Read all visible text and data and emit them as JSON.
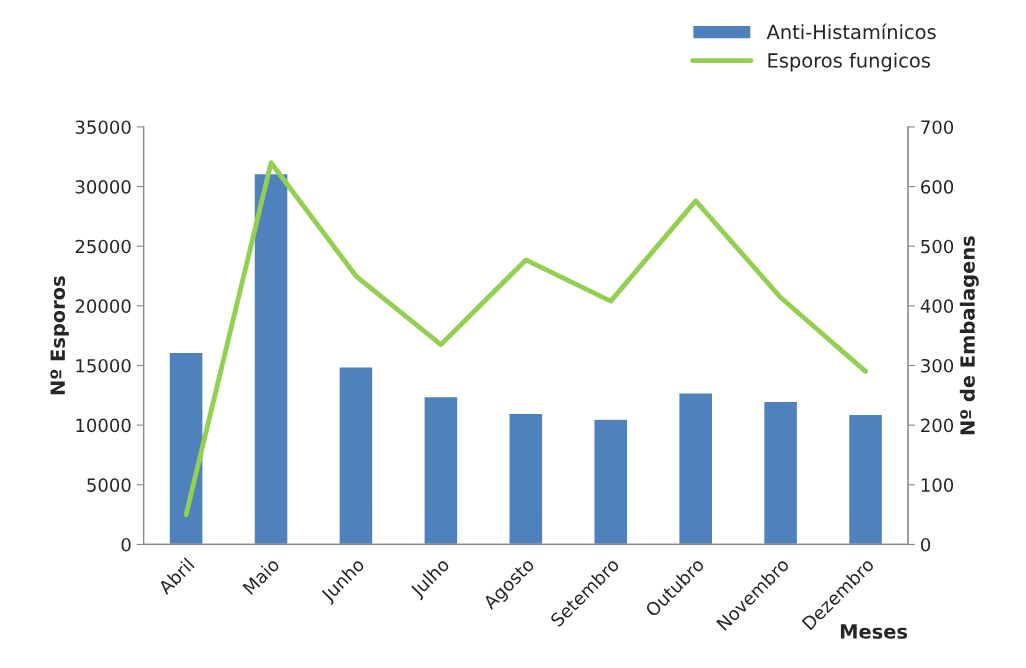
{
  "chart_data": {
    "type": "bar",
    "xlabel": "Meses",
    "ylabel": "Nº Esporos",
    "y2label": "Nº de Embalagens",
    "categories": [
      "Abril",
      "Maio",
      "Junho",
      "Julho",
      "Agosto",
      "Setembro",
      "Outubro",
      "Novembro",
      "Dezembro"
    ],
    "series": [
      {
        "name": "Anti-Histamínicos",
        "color": "#4f81bd",
        "values": [
          16100,
          31100,
          14900,
          12400,
          11000,
          10500,
          12700,
          12000,
          10900
        ]
      },
      {
        "name": "Esporos fungicos",
        "type": "line",
        "axis": "y2",
        "color": "#92d050",
        "values": [
          50,
          640,
          450,
          335,
          477,
          408,
          576,
          414,
          290
        ]
      }
    ],
    "ylim": [
      0,
      35000
    ],
    "yticks": [
      0,
      5000,
      10000,
      15000,
      20000,
      25000,
      30000,
      35000
    ],
    "y2lim": [
      0,
      700
    ],
    "y2ticks": [
      0,
      100,
      200,
      300,
      400,
      500,
      600,
      700
    ],
    "grid": false,
    "legend": "top right",
    "marker": "none",
    "line_style": "solid"
  }
}
